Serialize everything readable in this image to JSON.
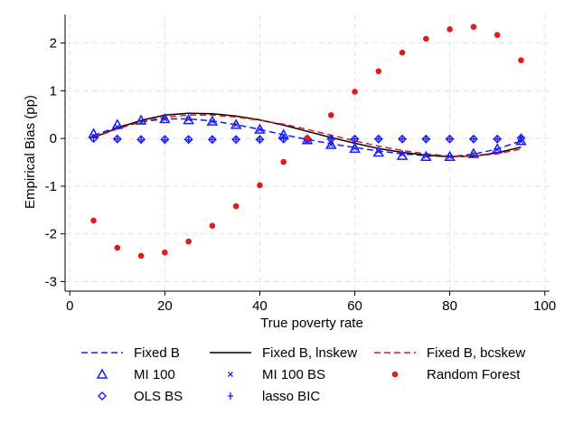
{
  "chart_data": {
    "type": "line",
    "xlabel": "True poverty rate",
    "ylabel": "Empirical Bias (pp)",
    "xlim": [
      -1,
      101
    ],
    "ylim": [
      -3.2,
      2.6
    ],
    "xticks": [
      0,
      20,
      40,
      60,
      80,
      100
    ],
    "yticks": [
      -3,
      -2,
      -1,
      0,
      1,
      2
    ],
    "grid": true,
    "legend_position": "bottom",
    "x": [
      5,
      10,
      15,
      20,
      25,
      30,
      35,
      40,
      45,
      50,
      55,
      60,
      65,
      70,
      75,
      80,
      85,
      90,
      95
    ],
    "series": [
      {
        "name": "Fixed B",
        "kind": "line",
        "style": "dashed",
        "color": "#1a1aff",
        "values": [
          0.06,
          0.24,
          0.35,
          0.41,
          0.41,
          0.37,
          0.29,
          0.19,
          0.08,
          -0.02,
          -0.11,
          -0.19,
          -0.26,
          -0.32,
          -0.36,
          -0.38,
          -0.33,
          -0.22,
          -0.05
        ]
      },
      {
        "name": "Fixed B, lnskew",
        "kind": "line",
        "style": "solid",
        "color": "#000000",
        "values": [
          0.02,
          0.22,
          0.38,
          0.49,
          0.53,
          0.52,
          0.47,
          0.39,
          0.28,
          0.15,
          0.02,
          -0.1,
          -0.21,
          -0.29,
          -0.35,
          -0.38,
          -0.37,
          -0.3,
          -0.18
        ]
      },
      {
        "name": "Fixed B, bcskew",
        "kind": "line",
        "style": "dashed",
        "color": "#e31a1c",
        "values": [
          0.02,
          0.2,
          0.35,
          0.45,
          0.49,
          0.49,
          0.45,
          0.38,
          0.3,
          0.19,
          0.07,
          -0.05,
          -0.16,
          -0.25,
          -0.32,
          -0.37,
          -0.37,
          -0.32,
          -0.22
        ]
      },
      {
        "name": "MI 100",
        "kind": "marker",
        "marker": "triangle",
        "color": "#1a1aff",
        "values": [
          0.1,
          0.29,
          0.38,
          0.41,
          0.39,
          0.36,
          0.29,
          0.19,
          0.08,
          -0.03,
          -0.13,
          -0.21,
          -0.29,
          -0.36,
          -0.38,
          -0.38,
          -0.32,
          -0.22,
          -0.05
        ]
      },
      {
        "name": "MI 100 BS",
        "kind": "marker",
        "marker": "x",
        "color": "#1a1aff",
        "values": [
          0.05,
          0.24,
          0.35,
          0.41,
          0.41,
          0.36,
          0.29,
          0.19,
          0.06,
          -0.04,
          -0.13,
          -0.2,
          -0.27,
          -0.33,
          -0.37,
          -0.38,
          -0.32,
          -0.23,
          -0.06
        ]
      },
      {
        "name": "OLS BS",
        "kind": "marker",
        "marker": "diamond",
        "color": "#1a1aff",
        "values": [
          0.0,
          -0.01,
          -0.02,
          -0.02,
          -0.02,
          -0.02,
          -0.02,
          -0.02,
          -0.01,
          -0.01,
          -0.01,
          -0.01,
          -0.01,
          -0.01,
          -0.01,
          -0.01,
          -0.01,
          -0.01,
          0.01
        ]
      },
      {
        "name": "lasso BIC",
        "kind": "marker",
        "marker": "plus",
        "color": "#1a1aff",
        "values": [
          0.02,
          -0.01,
          -0.03,
          -0.03,
          -0.03,
          -0.02,
          -0.02,
          -0.02,
          -0.01,
          -0.01,
          -0.01,
          -0.01,
          -0.01,
          -0.01,
          -0.01,
          -0.01,
          -0.01,
          -0.01,
          0.03
        ]
      },
      {
        "name": "Random Forest",
        "kind": "marker",
        "marker": "dot",
        "color": "#e31a1c",
        "values": [
          -1.72,
          -2.29,
          -2.46,
          -2.39,
          -2.16,
          -1.83,
          -1.42,
          -0.98,
          -0.49,
          0.01,
          0.49,
          0.98,
          1.41,
          1.8,
          2.09,
          2.29,
          2.34,
          2.17,
          1.64
        ]
      }
    ]
  }
}
